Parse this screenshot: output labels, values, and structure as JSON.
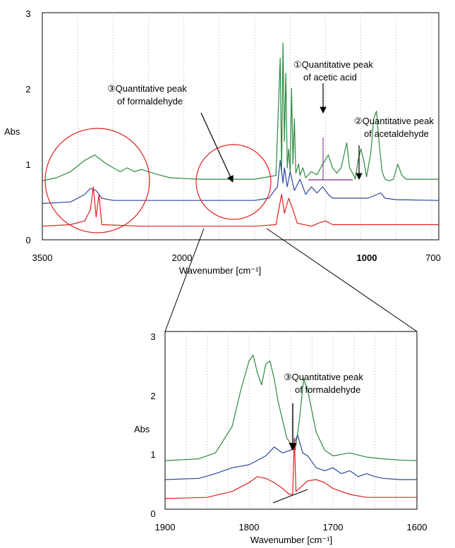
{
  "chart_data": [
    {
      "type": "line",
      "ylabel": "Abs",
      "xlabel": "Wavenumber [cm⁻¹]",
      "xlim": [
        3500,
        700
      ],
      "ylim": [
        0,
        3
      ],
      "x_ticks": [
        "3500",
        "2000",
        "1000",
        "700"
      ],
      "x_tick_values": [
        3500,
        2000,
        1000,
        700
      ],
      "y_ticks": [
        "0",
        "1",
        "2",
        "3"
      ],
      "grid": "dotted vertical lines",
      "series": [
        {
          "color": "#2a8a3e",
          "points": [
            [
              3500,
              0.78
            ],
            [
              3400,
              0.82
            ],
            [
              3300,
              0.9
            ],
            [
              3200,
              1.05
            ],
            [
              3130,
              1.12
            ],
            [
              3060,
              1.02
            ],
            [
              3000,
              0.95
            ],
            [
              2950,
              0.9
            ],
            [
              2900,
              0.95
            ],
            [
              2850,
              0.9
            ],
            [
              2800,
              0.93
            ],
            [
              2700,
              0.87
            ],
            [
              2600,
              0.82
            ],
            [
              2400,
              0.8
            ],
            [
              2000,
              0.8
            ],
            [
              1850,
              0.85
            ],
            [
              1820,
              2.4
            ],
            [
              1810,
              0.9
            ],
            [
              1800,
              2.6
            ],
            [
              1790,
              1.3
            ],
            [
              1780,
              2.2
            ],
            [
              1770,
              0.95
            ],
            [
              1760,
              1.2
            ],
            [
              1750,
              0.9
            ],
            [
              1740,
              2.0
            ],
            [
              1730,
              1.0
            ],
            [
              1720,
              1.6
            ],
            [
              1710,
              0.88
            ],
            [
              1690,
              1.0
            ],
            [
              1680,
              0.85
            ],
            [
              1660,
              0.95
            ],
            [
              1640,
              0.82
            ],
            [
              1600,
              0.9
            ],
            [
              1560,
              0.86
            ],
            [
              1520,
              1.0
            ],
            [
              1480,
              1.12
            ],
            [
              1450,
              0.95
            ],
            [
              1420,
              0.88
            ],
            [
              1390,
              0.95
            ],
            [
              1350,
              1.28
            ],
            [
              1330,
              0.95
            ],
            [
              1300,
              0.85
            ],
            [
              1290,
              0.8
            ],
            [
              1270,
              1.05
            ],
            [
              1250,
              1.2
            ],
            [
              1230,
              1.05
            ],
            [
              1210,
              0.83
            ],
            [
              1180,
              1.15
            ],
            [
              1160,
              1.6
            ],
            [
              1140,
              1.7
            ],
            [
              1120,
              1.25
            ],
            [
              1100,
              0.9
            ],
            [
              1080,
              0.8
            ],
            [
              1050,
              0.78
            ],
            [
              1020,
              0.8
            ],
            [
              990,
              1.0
            ],
            [
              960,
              0.85
            ],
            [
              930,
              0.8
            ],
            [
              800,
              0.8
            ],
            [
              700,
              0.8
            ]
          ]
        },
        {
          "color": "#2b4a9e",
          "points": [
            [
              3500,
              0.48
            ],
            [
              3300,
              0.5
            ],
            [
              3200,
              0.6
            ],
            [
              3160,
              0.68
            ],
            [
              3120,
              0.65
            ],
            [
              3080,
              0.55
            ],
            [
              3000,
              0.52
            ],
            [
              2800,
              0.52
            ],
            [
              2000,
              0.52
            ],
            [
              1900,
              0.55
            ],
            [
              1840,
              0.7
            ],
            [
              1820,
              1.05
            ],
            [
              1800,
              0.75
            ],
            [
              1790,
              0.95
            ],
            [
              1770,
              0.7
            ],
            [
              1750,
              0.9
            ],
            [
              1720,
              0.65
            ],
            [
              1680,
              0.8
            ],
            [
              1640,
              0.6
            ],
            [
              1600,
              0.7
            ],
            [
              1560,
              0.62
            ],
            [
              1520,
              0.7
            ],
            [
              1480,
              0.6
            ],
            [
              1450,
              0.55
            ],
            [
              1400,
              0.55
            ],
            [
              1300,
              0.55
            ],
            [
              1200,
              0.55
            ],
            [
              1110,
              0.62
            ],
            [
              1080,
              0.55
            ],
            [
              1000,
              0.53
            ],
            [
              700,
              0.52
            ]
          ]
        },
        {
          "color": "#e02020",
          "points": [
            [
              3500,
              0.18
            ],
            [
              3300,
              0.2
            ],
            [
              3200,
              0.25
            ],
            [
              3160,
              0.4
            ],
            [
              3140,
              0.7
            ],
            [
              3120,
              0.3
            ],
            [
              3100,
              0.6
            ],
            [
              3080,
              0.2
            ],
            [
              2800,
              0.18
            ],
            [
              2000,
              0.18
            ],
            [
              1850,
              0.2
            ],
            [
              1810,
              0.6
            ],
            [
              1790,
              0.35
            ],
            [
              1760,
              0.55
            ],
            [
              1730,
              0.4
            ],
            [
              1700,
              0.22
            ],
            [
              1600,
              0.18
            ],
            [
              1550,
              0.22
            ],
            [
              1500,
              0.25
            ],
            [
              1450,
              0.2
            ],
            [
              1300,
              0.2
            ],
            [
              1100,
              0.2
            ],
            [
              1000,
              0.2
            ],
            [
              700,
              0.2
            ]
          ]
        }
      ],
      "annotations": [
        {
          "id": "acetic",
          "line1": "①Quantitative peak",
          "line2": "of acetic acid"
        },
        {
          "id": "acetaldehyde",
          "line1": "②Quantitative peak",
          "line2": "of acetaldehyde"
        },
        {
          "id": "formaldehyde",
          "line1": "③Quantitative peak",
          "line2": "of formaldehyde"
        }
      ]
    },
    {
      "type": "line",
      "ylabel": "Abs",
      "xlabel": "Wavenumber [cm⁻¹]",
      "xlim": [
        1900,
        1600
      ],
      "ylim": [
        0,
        3
      ],
      "x_ticks": [
        "1900",
        "1800",
        "1700",
        "1600"
      ],
      "x_tick_values": [
        1900,
        1800,
        1700,
        1600
      ],
      "y_ticks": [
        "0",
        "1",
        "2",
        "3"
      ],
      "grid": "dotted vertical lines",
      "series": [
        {
          "color": "#2a8a3e",
          "points": [
            [
              1900,
              0.82
            ],
            [
              1860,
              0.85
            ],
            [
              1840,
              0.95
            ],
            [
              1820,
              1.4
            ],
            [
              1810,
              2.0
            ],
            [
              1800,
              2.5
            ],
            [
              1795,
              2.6
            ],
            [
              1790,
              2.3
            ],
            [
              1785,
              2.1
            ],
            [
              1780,
              2.45
            ],
            [
              1775,
              2.5
            ],
            [
              1770,
              2.2
            ],
            [
              1765,
              1.8
            ],
            [
              1760,
              1.5
            ],
            [
              1755,
              1.2
            ],
            [
              1750,
              1.1
            ],
            [
              1745,
              1.0
            ],
            [
              1740,
              1.5
            ],
            [
              1735,
              2.2
            ],
            [
              1730,
              2.0
            ],
            [
              1720,
              1.3
            ],
            [
              1710,
              1.0
            ],
            [
              1700,
              0.9
            ],
            [
              1680,
              0.95
            ],
            [
              1660,
              0.88
            ],
            [
              1640,
              0.85
            ],
            [
              1620,
              0.83
            ],
            [
              1600,
              0.82
            ]
          ]
        },
        {
          "color": "#2b4a9e",
          "points": [
            [
              1900,
              0.5
            ],
            [
              1860,
              0.52
            ],
            [
              1840,
              0.6
            ],
            [
              1820,
              0.7
            ],
            [
              1800,
              0.75
            ],
            [
              1780,
              0.9
            ],
            [
              1770,
              1.05
            ],
            [
              1760,
              0.95
            ],
            [
              1750,
              1.0
            ],
            [
              1742,
              1.25
            ],
            [
              1736,
              0.95
            ],
            [
              1730,
              0.9
            ],
            [
              1720,
              0.7
            ],
            [
              1710,
              0.65
            ],
            [
              1700,
              0.7
            ],
            [
              1690,
              0.6
            ],
            [
              1680,
              0.65
            ],
            [
              1670,
              0.55
            ],
            [
              1660,
              0.6
            ],
            [
              1650,
              0.55
            ],
            [
              1640,
              0.52
            ],
            [
              1620,
              0.5
            ],
            [
              1600,
              0.5
            ]
          ]
        },
        {
          "color": "#e02020",
          "points": [
            [
              1900,
              0.18
            ],
            [
              1850,
              0.2
            ],
            [
              1820,
              0.3
            ],
            [
              1800,
              0.45
            ],
            [
              1790,
              0.55
            ],
            [
              1780,
              0.52
            ],
            [
              1770,
              0.45
            ],
            [
              1760,
              0.35
            ],
            [
              1752,
              0.25
            ],
            [
              1748,
              0.25
            ],
            [
              1746,
              1.2
            ],
            [
              1744,
              0.3
            ],
            [
              1740,
              0.35
            ],
            [
              1730,
              0.48
            ],
            [
              1720,
              0.5
            ],
            [
              1710,
              0.45
            ],
            [
              1700,
              0.35
            ],
            [
              1680,
              0.25
            ],
            [
              1660,
              0.2
            ],
            [
              1640,
              0.2
            ],
            [
              1600,
              0.2
            ]
          ]
        }
      ],
      "annotations": [
        {
          "id": "formaldehyde",
          "line1": "③Quantitative peak",
          "line2": "of formaldehyde"
        }
      ]
    }
  ]
}
